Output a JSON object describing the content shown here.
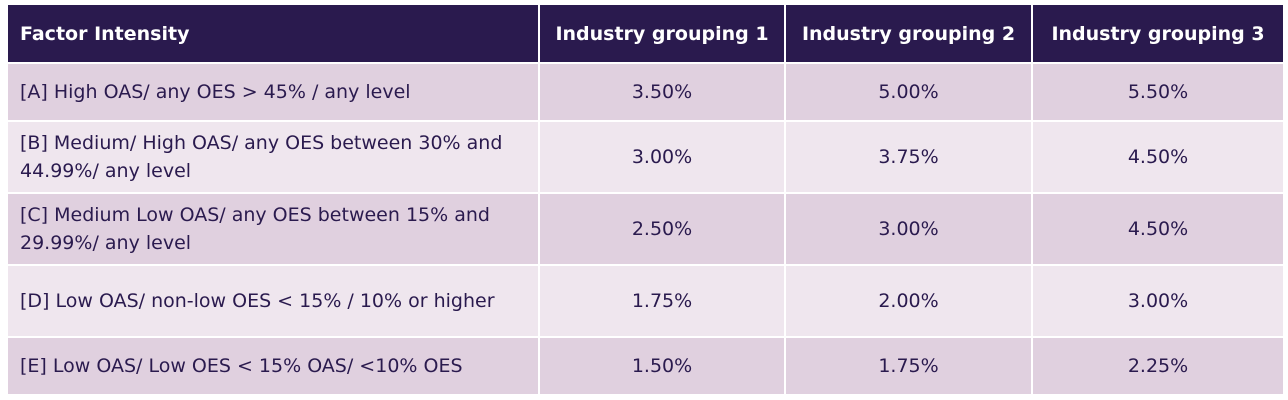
{
  "table": {
    "header": [
      "Factor Intensity",
      "Industry grouping 1",
      "Industry grouping 2",
      "Industry grouping 3"
    ],
    "rows": [
      [
        "[A] High OAS/ any OES > 45% / any level",
        "3.50%",
        "5.00%",
        "5.50%"
      ],
      [
        "[B] Medium/ High OAS/ any OES between 30% and 44.99%/ any level",
        "3.00%",
        "3.75%",
        "4.50%"
      ],
      [
        "[C] Medium Low OAS/ any OES between 15% and 29.99%/ any level",
        "2.50%",
        "3.00%",
        "4.50%"
      ],
      [
        "[D] Low OAS/ non-low OES < 15% / 10% or higher",
        "1.75%",
        "2.00%",
        "3.00%"
      ],
      [
        "[E] Low OAS/ Low OES < 15% OAS/ <10% OES",
        "1.50%",
        "1.75%",
        "2.25%"
      ]
    ]
  }
}
